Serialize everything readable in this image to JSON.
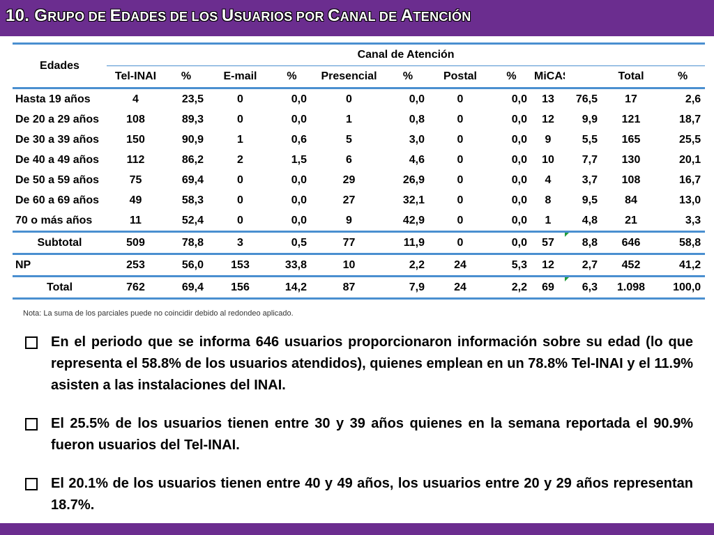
{
  "title": {
    "number": "10. ",
    "words": [
      {
        "cap": "G",
        "rest": "RUPO DE "
      },
      {
        "cap": " E",
        "rest": "DADES DE LOS "
      },
      {
        "cap": "U",
        "rest": "SUARIOS POR "
      },
      {
        "cap": "C",
        "rest": "ANAL DE "
      },
      {
        "cap": "A",
        "rest": "TENCIÓN"
      }
    ]
  },
  "table": {
    "edades_label": "Edades",
    "canal_label": "Canal de Atención",
    "columns": [
      "Tel-INAI",
      "%",
      "E-mail",
      "%",
      "Presencial",
      "%",
      "Postal",
      "%",
      "MiCAS",
      "",
      "Total",
      "%"
    ],
    "rows": [
      {
        "label": "Hasta 19 años",
        "values": [
          "4",
          "23,5",
          "0",
          "0,0",
          "0",
          "0,0",
          "0",
          "0,0",
          "13",
          "76,5",
          "17",
          "2,6"
        ]
      },
      {
        "label": "De 20 a 29 años",
        "values": [
          "108",
          "89,3",
          "0",
          "0,0",
          "1",
          "0,8",
          "0",
          "0,0",
          "12",
          "9,9",
          "121",
          "18,7"
        ]
      },
      {
        "label": "De 30 a 39 años",
        "values": [
          "150",
          "90,9",
          "1",
          "0,6",
          "5",
          "3,0",
          "0",
          "0,0",
          "9",
          "5,5",
          "165",
          "25,5"
        ]
      },
      {
        "label": "De 40 a 49 años",
        "values": [
          "112",
          "86,2",
          "2",
          "1,5",
          "6",
          "4,6",
          "0",
          "0,0",
          "10",
          "7,7",
          "130",
          "20,1"
        ]
      },
      {
        "label": "De 50 a 59 años",
        "values": [
          "75",
          "69,4",
          "0",
          "0,0",
          "29",
          "26,9",
          "0",
          "0,0",
          "4",
          "3,7",
          "108",
          "16,7"
        ]
      },
      {
        "label": "De 60 a 69 años",
        "values": [
          "49",
          "58,3",
          "0",
          "0,0",
          "27",
          "32,1",
          "0",
          "0,0",
          "8",
          "9,5",
          "84",
          "13,0"
        ]
      },
      {
        "label": "70 o más años",
        "values": [
          "11",
          "52,4",
          "0",
          "0,0",
          "9",
          "42,9",
          "0",
          "0,0",
          "1",
          "4,8",
          "21",
          "3,3"
        ]
      }
    ],
    "subtotal": {
      "label": "Subtotal",
      "values": [
        "509",
        "78,8",
        "3",
        "0,5",
        "77",
        "11,9",
        "0",
        "0,0",
        "57",
        "8,8",
        "646",
        "58,8"
      ]
    },
    "np": {
      "label": "NP",
      "values": [
        "253",
        "56,0",
        "153",
        "33,8",
        "10",
        "2,2",
        "24",
        "5,3",
        "12",
        "2,7",
        "452",
        "41,2"
      ]
    },
    "total": {
      "label": "Total",
      "values": [
        "762",
        "69,4",
        "156",
        "14,2",
        "87",
        "7,9",
        "24",
        "2,2",
        "69",
        "6,3",
        "1.098",
        "100,0"
      ]
    }
  },
  "note": "Nota: La suma de los parciales puede no coincidir debido al redondeo aplicado.",
  "bullets": [
    "En el periodo que se informa 646 usuarios proporcionaron información sobre su edad (lo que representa el 58.8% de los usuarios atendidos), quienes emplean en un 78.8% Tel-INAI y el 11.9% asisten a las instalaciones del INAI.",
    "El 25.5% de los usuarios tienen entre 30 y 39 años quienes en la semana reportada el 90.9% fueron usuarios del  Tel-INAI.",
    "El 20.1% de los usuarios tienen entre 40 y 49 años, los usuarios entre 20 y 29 años representan 18.7%."
  ],
  "colors": {
    "brand_purple": "#6b2d8f",
    "table_rule_blue": "#4a8fd0",
    "marker_green": "#1f9a3a"
  }
}
